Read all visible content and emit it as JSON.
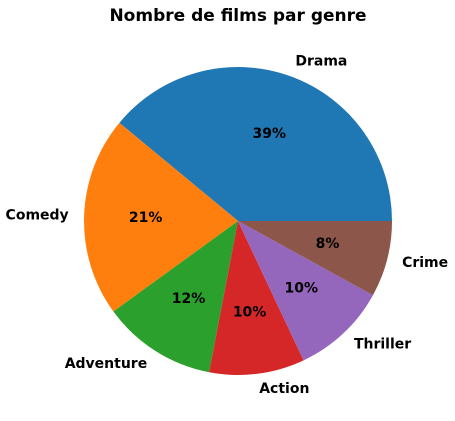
{
  "chart_data": {
    "type": "pie",
    "title": "Nombre de films par genre",
    "slices": [
      {
        "label": "Drama",
        "value": 39,
        "pct_label": "39%",
        "color": "#1f77b4"
      },
      {
        "label": "Comedy",
        "value": 21,
        "pct_label": "21%",
        "color": "#ff7f0e"
      },
      {
        "label": "Adventure",
        "value": 12,
        "pct_label": "12%",
        "color": "#2ca02c"
      },
      {
        "label": "Action",
        "value": 10,
        "pct_label": "10%",
        "color": "#d62728"
      },
      {
        "label": "Thriller",
        "value": 10,
        "pct_label": "10%",
        "color": "#9467bd"
      },
      {
        "label": "Crime",
        "value": 8,
        "pct_label": "8%",
        "color": "#8c564b"
      }
    ],
    "start_angle_deg": 0,
    "direction": "counterclockwise"
  }
}
